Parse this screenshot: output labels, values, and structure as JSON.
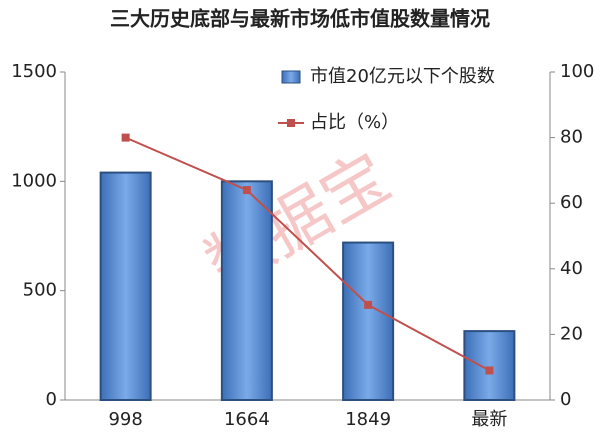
{
  "chart_data": {
    "type": "bar",
    "title": "三大历史底部与最新市场低市值股数量情况",
    "categories": [
      "998",
      "1664",
      "1849",
      "最新"
    ],
    "series": [
      {
        "name": "市值20亿元以下个股数",
        "color": "#5b8fd6",
        "values": [
          1040,
          1000,
          720,
          315
        ]
      },
      {
        "name": "占比（%）",
        "color": "#c0504d",
        "type": "line",
        "axis": "y2",
        "values": [
          80,
          64,
          29,
          9
        ]
      }
    ],
    "ylim": [
      0,
      1500
    ],
    "yticks": [
      0,
      500,
      1000,
      1500
    ],
    "y2lim": [
      0,
      100
    ],
    "y2ticks": [
      0,
      20,
      40,
      60,
      80,
      100
    ],
    "legend": "top-right",
    "watermark": "数据宝"
  }
}
